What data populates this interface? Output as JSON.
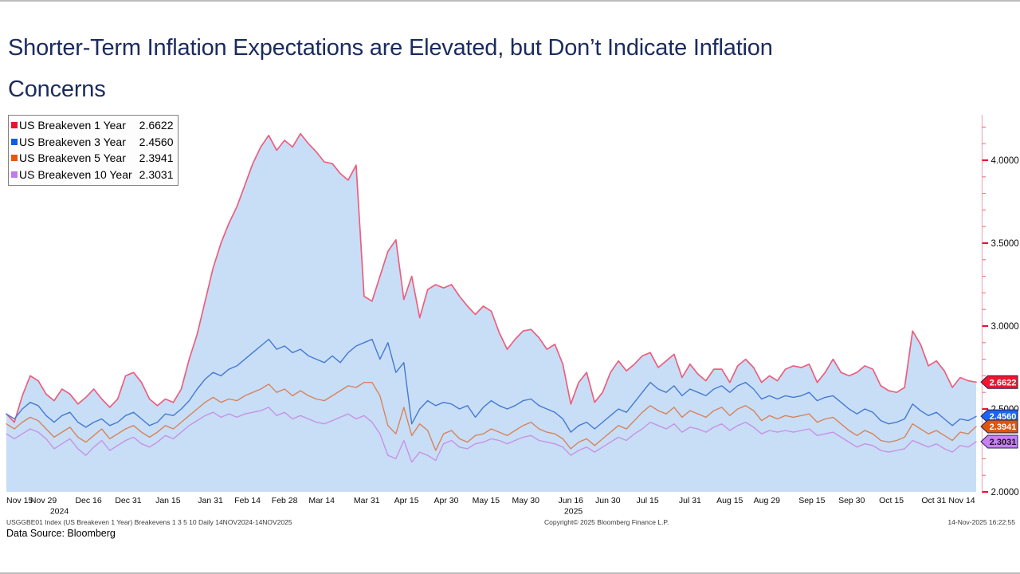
{
  "title": {
    "line1": "Shorter-Term Inflation Expectations are Elevated, but Don’t Indicate Inflation",
    "line2": "Concerns"
  },
  "legend": {
    "items": [
      {
        "label": "US Breakeven 1 Year",
        "value": "2.6622",
        "color": "#e8152c"
      },
      {
        "label": "US Breakeven 3 Year",
        "value": "2.4560",
        "color": "#0f5ce8"
      },
      {
        "label": "US Breakeven 5 Year",
        "value": "2.3941",
        "color": "#e8570e"
      },
      {
        "label": "US Breakeven 10 Year",
        "value": "2.3031",
        "color": "#bd7ceb"
      }
    ]
  },
  "chart_data": {
    "type": "line",
    "title": "US Breakevens 1 3 5 10 Daily 14NOV2024-14NOV2025",
    "fill_color": "#c7def6",
    "axis_line_color": "#f5b3c2",
    "tick_color": "#e8112d",
    "minor_tick_color": "#f0708a",
    "x_axis": {
      "domain_days": [
        0,
        366
      ],
      "ticks": [
        {
          "label": "Nov 15",
          "day": 0
        },
        {
          "label": "Nov 29",
          "day": 14
        },
        {
          "label": "Dec 16",
          "day": 31
        },
        {
          "label": "Dec 31",
          "day": 46
        },
        {
          "label": "Jan 15",
          "day": 61
        },
        {
          "label": "Jan 31",
          "day": 77
        },
        {
          "label": "Feb 14",
          "day": 91
        },
        {
          "label": "Feb 28",
          "day": 105
        },
        {
          "label": "Mar 14",
          "day": 119
        },
        {
          "label": "Mar 31",
          "day": 136
        },
        {
          "label": "Apr 15",
          "day": 151
        },
        {
          "label": "Apr 30",
          "day": 166
        },
        {
          "label": "May 15",
          "day": 181
        },
        {
          "label": "May 30",
          "day": 196
        },
        {
          "label": "Jun 16",
          "day": 213
        },
        {
          "label": "Jun 30",
          "day": 227
        },
        {
          "label": "Jul 15",
          "day": 242
        },
        {
          "label": "Jul 31",
          "day": 258
        },
        {
          "label": "Aug 15",
          "day": 273
        },
        {
          "label": "Aug 29",
          "day": 287
        },
        {
          "label": "Sep 15",
          "day": 304
        },
        {
          "label": "Sep 30",
          "day": 319
        },
        {
          "label": "Oct 15",
          "day": 334
        },
        {
          "label": "Oct 31",
          "day": 350
        },
        {
          "label": "Nov 14",
          "day": 364
        }
      ],
      "year_labels": [
        {
          "text": "2024",
          "day": 20
        },
        {
          "text": "2025",
          "day": 214
        }
      ]
    },
    "y_axis": {
      "min": 2.0,
      "max": 4.27,
      "minor_step": 0.1,
      "minor_max": 4.2,
      "major_ticks": [
        {
          "value": 4.0,
          "label": "4.0000"
        },
        {
          "value": 3.5,
          "label": "3.5000"
        },
        {
          "value": 3.0,
          "label": "3.0000"
        },
        {
          "value": 2.5,
          "label": "2.5000"
        },
        {
          "value": 2.0,
          "label": "2.0000"
        }
      ]
    },
    "series": [
      {
        "name": "US Breakeven 1 Year",
        "color": "#ec5f7d",
        "width": 1.7,
        "area": true,
        "badge": {
          "text": "2.6622",
          "bg": "#f2152e",
          "fg": "#ffffff"
        },
        "last": 2.6622,
        "values": [
          2.47,
          2.42,
          2.58,
          2.7,
          2.67,
          2.59,
          2.55,
          2.62,
          2.59,
          2.53,
          2.57,
          2.62,
          2.56,
          2.51,
          2.56,
          2.7,
          2.72,
          2.66,
          2.56,
          2.52,
          2.56,
          2.54,
          2.62,
          2.8,
          2.95,
          3.15,
          3.35,
          3.5,
          3.62,
          3.72,
          3.85,
          3.98,
          4.08,
          4.15,
          4.06,
          4.12,
          4.08,
          4.16,
          4.1,
          4.05,
          3.99,
          3.98,
          3.92,
          3.88,
          3.97,
          3.18,
          3.15,
          3.3,
          3.45,
          3.52,
          3.16,
          3.3,
          3.05,
          3.22,
          3.25,
          3.23,
          3.25,
          3.18,
          3.12,
          3.07,
          3.12,
          3.09,
          2.96,
          2.86,
          2.92,
          2.97,
          2.98,
          2.93,
          2.86,
          2.89,
          2.77,
          2.53,
          2.66,
          2.72,
          2.54,
          2.6,
          2.72,
          2.79,
          2.73,
          2.77,
          2.82,
          2.84,
          2.75,
          2.79,
          2.83,
          2.69,
          2.77,
          2.71,
          2.67,
          2.74,
          2.74,
          2.66,
          2.76,
          2.8,
          2.75,
          2.66,
          2.7,
          2.67,
          2.74,
          2.76,
          2.75,
          2.77,
          2.66,
          2.72,
          2.8,
          2.72,
          2.7,
          2.72,
          2.76,
          2.74,
          2.64,
          2.61,
          2.6,
          2.63,
          2.97,
          2.89,
          2.76,
          2.79,
          2.73,
          2.63,
          2.69,
          2.67,
          2.6622
        ]
      },
      {
        "name": "US Breakeven 3 Year",
        "color": "#4579d2",
        "width": 1.4,
        "area": false,
        "badge": {
          "text": "2.4560",
          "bg": "#1a64f5",
          "fg": "#ffffff"
        },
        "last": 2.456,
        "values": [
          2.47,
          2.44,
          2.5,
          2.54,
          2.52,
          2.46,
          2.42,
          2.46,
          2.48,
          2.42,
          2.39,
          2.42,
          2.44,
          2.4,
          2.42,
          2.46,
          2.48,
          2.44,
          2.4,
          2.42,
          2.47,
          2.46,
          2.5,
          2.55,
          2.62,
          2.68,
          2.72,
          2.7,
          2.74,
          2.76,
          2.8,
          2.84,
          2.88,
          2.92,
          2.86,
          2.88,
          2.84,
          2.86,
          2.82,
          2.8,
          2.78,
          2.82,
          2.78,
          2.84,
          2.88,
          2.9,
          2.92,
          2.8,
          2.9,
          2.72,
          2.78,
          2.41,
          2.5,
          2.55,
          2.52,
          2.54,
          2.53,
          2.5,
          2.52,
          2.45,
          2.51,
          2.55,
          2.52,
          2.5,
          2.52,
          2.55,
          2.56,
          2.52,
          2.5,
          2.48,
          2.44,
          2.36,
          2.4,
          2.42,
          2.38,
          2.42,
          2.46,
          2.5,
          2.48,
          2.54,
          2.6,
          2.66,
          2.62,
          2.6,
          2.64,
          2.58,
          2.62,
          2.6,
          2.58,
          2.62,
          2.64,
          2.6,
          2.64,
          2.66,
          2.62,
          2.56,
          2.58,
          2.56,
          2.58,
          2.57,
          2.58,
          2.6,
          2.55,
          2.57,
          2.58,
          2.54,
          2.5,
          2.47,
          2.5,
          2.48,
          2.43,
          2.41,
          2.42,
          2.44,
          2.53,
          2.49,
          2.46,
          2.48,
          2.44,
          2.4,
          2.44,
          2.43,
          2.456
        ]
      },
      {
        "name": "US Breakeven 5 Year",
        "color": "#d9825c",
        "width": 1.4,
        "area": false,
        "badge": {
          "text": "2.3941",
          "bg": "#e0550c",
          "fg": "#ffffff"
        },
        "last": 2.3941,
        "values": [
          2.41,
          2.38,
          2.42,
          2.45,
          2.43,
          2.38,
          2.33,
          2.36,
          2.39,
          2.33,
          2.3,
          2.34,
          2.38,
          2.32,
          2.35,
          2.38,
          2.4,
          2.36,
          2.33,
          2.36,
          2.4,
          2.38,
          2.42,
          2.46,
          2.5,
          2.54,
          2.57,
          2.54,
          2.56,
          2.55,
          2.58,
          2.6,
          2.62,
          2.65,
          2.6,
          2.62,
          2.58,
          2.61,
          2.58,
          2.56,
          2.55,
          2.58,
          2.61,
          2.64,
          2.63,
          2.66,
          2.66,
          2.58,
          2.4,
          2.35,
          2.51,
          2.34,
          2.41,
          2.37,
          2.25,
          2.35,
          2.37,
          2.32,
          2.3,
          2.34,
          2.35,
          2.38,
          2.36,
          2.34,
          2.37,
          2.4,
          2.42,
          2.38,
          2.36,
          2.35,
          2.32,
          2.26,
          2.3,
          2.32,
          2.28,
          2.32,
          2.36,
          2.4,
          2.38,
          2.43,
          2.48,
          2.52,
          2.49,
          2.47,
          2.51,
          2.45,
          2.49,
          2.47,
          2.45,
          2.49,
          2.51,
          2.46,
          2.5,
          2.52,
          2.49,
          2.43,
          2.46,
          2.44,
          2.46,
          2.45,
          2.46,
          2.47,
          2.42,
          2.44,
          2.45,
          2.41,
          2.37,
          2.34,
          2.37,
          2.35,
          2.31,
          2.3,
          2.31,
          2.33,
          2.41,
          2.38,
          2.35,
          2.37,
          2.34,
          2.31,
          2.36,
          2.35,
          2.3941
        ]
      },
      {
        "name": "US Breakeven 10 Year",
        "color": "#c792e6",
        "width": 1.4,
        "area": false,
        "badge": {
          "text": "2.3031",
          "bg": "#c77ff2",
          "fg": "#141414"
        },
        "last": 2.3031,
        "values": [
          2.35,
          2.32,
          2.35,
          2.38,
          2.36,
          2.32,
          2.26,
          2.29,
          2.32,
          2.26,
          2.22,
          2.27,
          2.31,
          2.25,
          2.28,
          2.31,
          2.33,
          2.29,
          2.27,
          2.3,
          2.34,
          2.32,
          2.36,
          2.4,
          2.43,
          2.46,
          2.48,
          2.45,
          2.47,
          2.45,
          2.47,
          2.48,
          2.49,
          2.51,
          2.46,
          2.48,
          2.44,
          2.46,
          2.44,
          2.42,
          2.41,
          2.43,
          2.45,
          2.47,
          2.44,
          2.46,
          2.42,
          2.35,
          2.22,
          2.2,
          2.31,
          2.18,
          2.24,
          2.22,
          2.19,
          2.29,
          2.31,
          2.27,
          2.26,
          2.29,
          2.3,
          2.32,
          2.31,
          2.29,
          2.31,
          2.33,
          2.34,
          2.31,
          2.3,
          2.29,
          2.27,
          2.22,
          2.25,
          2.27,
          2.24,
          2.27,
          2.3,
          2.33,
          2.31,
          2.35,
          2.38,
          2.42,
          2.4,
          2.38,
          2.41,
          2.36,
          2.39,
          2.38,
          2.36,
          2.39,
          2.41,
          2.37,
          2.4,
          2.42,
          2.39,
          2.35,
          2.37,
          2.36,
          2.37,
          2.36,
          2.37,
          2.38,
          2.34,
          2.35,
          2.36,
          2.33,
          2.3,
          2.27,
          2.29,
          2.28,
          2.25,
          2.24,
          2.25,
          2.26,
          2.31,
          2.29,
          2.27,
          2.29,
          2.26,
          2.24,
          2.28,
          2.27,
          2.3031
        ]
      }
    ]
  },
  "footer": {
    "left_line": "USGGBE01 Index (US Breakeven 1 Year) Breakevens 1 3 5 10 Daily 14NOV2024-14NOV2025",
    "center_line": "Copyright© 2025 Bloomberg Finance L.P.",
    "right_line": "14-Nov-2025 16:22:55",
    "data_source": "Data Source: Bloomberg"
  }
}
